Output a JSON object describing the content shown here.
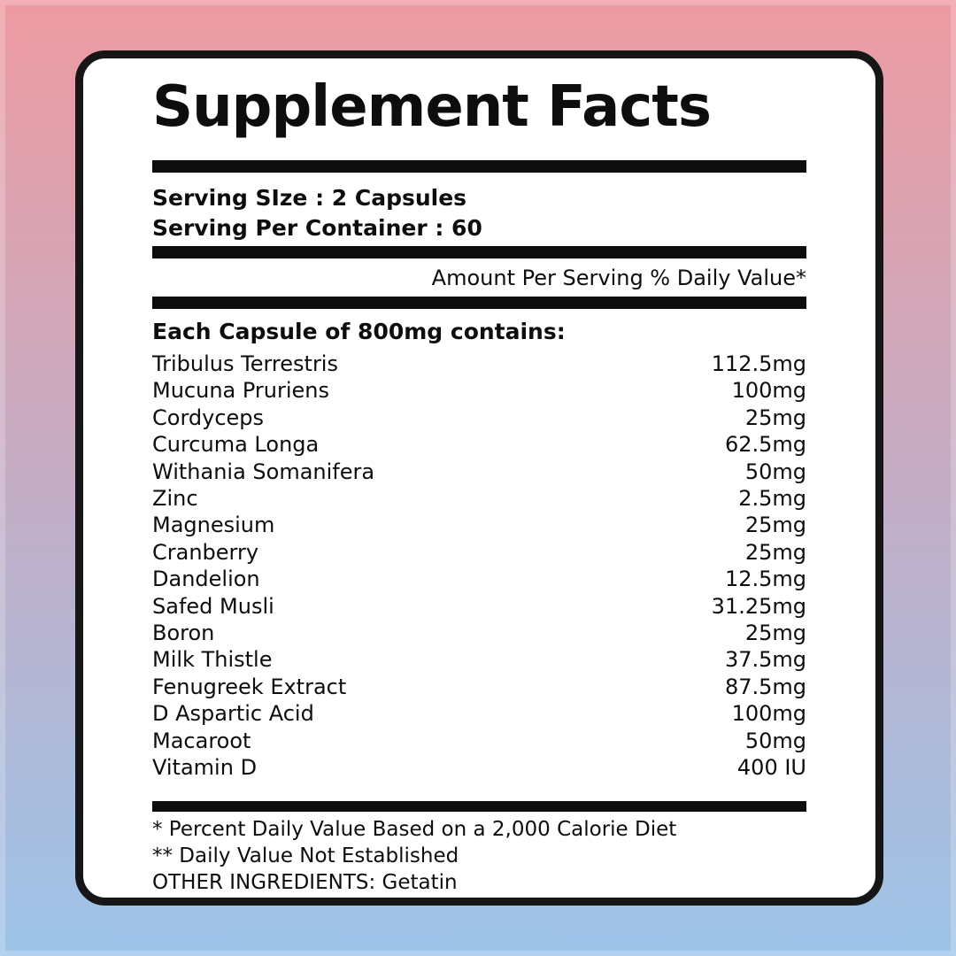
{
  "background": {
    "top_color": "#ED9AA1",
    "bottom_color": "#9DC4E9"
  },
  "card": {
    "background_color": "#FFFFFF",
    "border_color": "#161616",
    "text_color": "#0D0D0D"
  },
  "label": {
    "title": "Supplement Facts",
    "serving_size": "Serving SIze : 2 Capsules",
    "servings_per_container": "Serving Per Container : 60",
    "amount_header": "Amount Per Serving % Daily Value*",
    "contains_heading": "Each Capsule of 800mg contains:",
    "ingredients": [
      {
        "name": "Tribulus Terrestris",
        "amount": "112.5mg"
      },
      {
        "name": "Mucuna Pruriens",
        "amount": "100mg"
      },
      {
        "name": "Cordyceps",
        "amount": "25mg"
      },
      {
        "name": "Curcuma Longa",
        "amount": "62.5mg"
      },
      {
        "name": "Withania Somanifera",
        "amount": "50mg"
      },
      {
        "name": "Zinc",
        "amount": "2.5mg"
      },
      {
        "name": "Magnesium",
        "amount": "25mg"
      },
      {
        "name": "Cranberry",
        "amount": "25mg"
      },
      {
        "name": "Dandelion",
        "amount": "12.5mg"
      },
      {
        "name": "Safed Musli",
        "amount": "31.25mg"
      },
      {
        "name": "Boron",
        "amount": "25mg"
      },
      {
        "name": "Milk Thistle",
        "amount": "37.5mg"
      },
      {
        "name": "Fenugreek Extract",
        "amount": "87.5mg"
      },
      {
        "name": "D Aspartic Acid",
        "amount": "100mg"
      },
      {
        "name": "Macaroot",
        "amount": "50mg"
      },
      {
        "name": "Vitamin D",
        "amount": "400 IU"
      }
    ],
    "footnotes": [
      "* Percent Daily Value Based on a 2,000 Calorie Diet",
      "** Daily Value Not Established",
      "OTHER INGREDIENTS: Getatin"
    ]
  }
}
